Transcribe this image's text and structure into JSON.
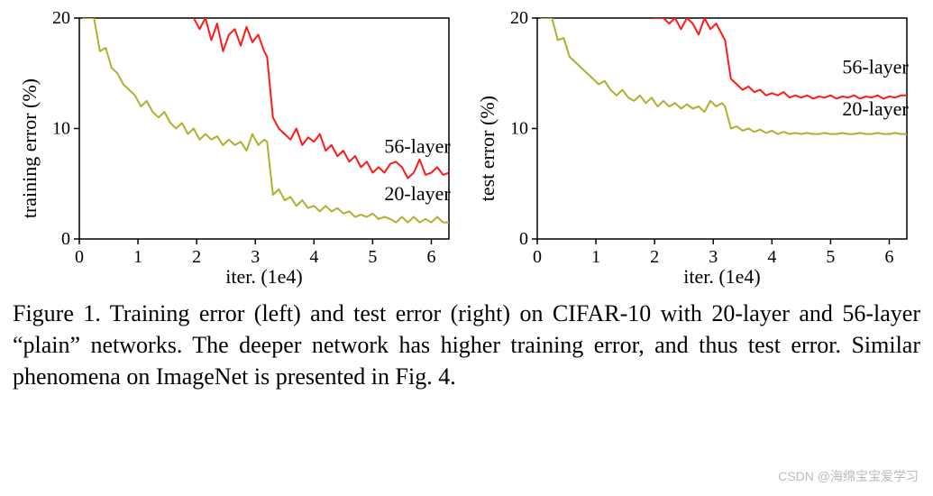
{
  "figure": {
    "caption": "Figure 1. Training error (left) and test error (right) on CIFAR-10 with 20-layer and 56-layer “plain” networks. The deeper network has higher training error, and thus test error. Similar phenomena on ImageNet is presented in Fig. 4.",
    "watermark": "CSDN @海绵宝宝爱学习"
  },
  "left_chart": {
    "type": "line",
    "ylabel": "training error (%)",
    "xlabel": "iter. (1e4)",
    "xlim": [
      0,
      6.3
    ],
    "ylim": [
      0,
      20
    ],
    "xticks": [
      0,
      1,
      2,
      3,
      4,
      5,
      6
    ],
    "yticks": [
      0,
      10,
      20
    ],
    "label_fontsize": 22,
    "tick_fontsize": 20,
    "axis_color": "#000000",
    "background_color": "#ffffff",
    "line_width": 2,
    "series": [
      {
        "name": "56-layer",
        "color": "#ff1a1a",
        "annotation": "56-layer",
        "annotation_xy": [
          5.2,
          7.8
        ],
        "x": [
          1.95,
          2.05,
          2.15,
          2.25,
          2.35,
          2.45,
          2.55,
          2.65,
          2.75,
          2.85,
          2.95,
          3.05,
          3.15,
          3.2,
          3.3,
          3.4,
          3.5,
          3.6,
          3.7,
          3.8,
          3.9,
          4.0,
          4.1,
          4.2,
          4.3,
          4.4,
          4.5,
          4.6,
          4.7,
          4.8,
          4.9,
          5.0,
          5.1,
          5.2,
          5.3,
          5.4,
          5.5,
          5.6,
          5.7,
          5.8,
          5.9,
          6.0,
          6.1,
          6.2,
          6.3
        ],
        "y": [
          20,
          19.0,
          20,
          18.0,
          19.5,
          17.0,
          18.5,
          19.0,
          17.5,
          19.2,
          17.8,
          18.5,
          17.0,
          16.5,
          11.0,
          10.0,
          9.5,
          9.0,
          10.0,
          8.5,
          9.2,
          8.8,
          9.5,
          8.0,
          8.5,
          7.5,
          8.0,
          7.0,
          7.5,
          6.5,
          7.0,
          6.0,
          6.5,
          6.0,
          6.8,
          7.0,
          6.5,
          5.5,
          6.0,
          7.2,
          5.8,
          6.0,
          6.5,
          5.8,
          6.0
        ]
      },
      {
        "name": "20-layer",
        "color": "#b0b030",
        "annotation": "20-layer",
        "annotation_xy": [
          5.2,
          3.5
        ],
        "x": [
          0.05,
          0.15,
          0.25,
          0.35,
          0.45,
          0.55,
          0.65,
          0.75,
          0.85,
          0.95,
          1.05,
          1.15,
          1.25,
          1.35,
          1.45,
          1.55,
          1.65,
          1.75,
          1.85,
          1.95,
          2.05,
          2.15,
          2.25,
          2.35,
          2.45,
          2.55,
          2.65,
          2.75,
          2.85,
          2.95,
          3.05,
          3.15,
          3.2,
          3.3,
          3.4,
          3.5,
          3.6,
          3.7,
          3.8,
          3.9,
          4.0,
          4.1,
          4.2,
          4.3,
          4.4,
          4.5,
          4.6,
          4.7,
          4.8,
          4.9,
          5.0,
          5.1,
          5.2,
          5.3,
          5.4,
          5.5,
          5.6,
          5.7,
          5.8,
          5.9,
          6.0,
          6.1,
          6.2,
          6.3
        ],
        "y": [
          20,
          20,
          20,
          17.0,
          17.3,
          15.5,
          15.0,
          14.0,
          13.5,
          13.0,
          12.0,
          12.5,
          11.5,
          11.0,
          11.5,
          10.5,
          10.0,
          10.5,
          9.5,
          10.0,
          9.0,
          9.5,
          9.0,
          9.3,
          8.5,
          9.0,
          8.5,
          8.8,
          8.0,
          9.5,
          8.5,
          9.0,
          8.8,
          4.0,
          4.5,
          3.5,
          3.8,
          3.0,
          3.5,
          2.8,
          3.0,
          2.5,
          3.0,
          2.5,
          2.8,
          2.3,
          2.5,
          2.0,
          2.2,
          2.0,
          2.3,
          1.8,
          2.0,
          1.8,
          1.5,
          2.0,
          1.5,
          2.0,
          1.5,
          1.8,
          1.5,
          2.0,
          1.5,
          1.5
        ]
      }
    ]
  },
  "right_chart": {
    "type": "line",
    "ylabel": "test error (%)",
    "xlabel": "iter. (1e4)",
    "xlim": [
      0,
      6.3
    ],
    "ylim": [
      0,
      20
    ],
    "xticks": [
      0,
      1,
      2,
      3,
      4,
      5,
      6
    ],
    "yticks": [
      0,
      10,
      20
    ],
    "label_fontsize": 22,
    "tick_fontsize": 20,
    "axis_color": "#000000",
    "background_color": "#ffffff",
    "line_width": 2,
    "series": [
      {
        "name": "56-layer",
        "color": "#ff1a1a",
        "annotation": "56-layer",
        "annotation_xy": [
          5.2,
          15.0
        ],
        "x": [
          1.95,
          2.05,
          2.15,
          2.25,
          2.35,
          2.45,
          2.55,
          2.65,
          2.75,
          2.85,
          2.95,
          3.05,
          3.15,
          3.2,
          3.3,
          3.4,
          3.5,
          3.6,
          3.7,
          3.8,
          3.9,
          4.0,
          4.1,
          4.2,
          4.3,
          4.4,
          4.5,
          4.6,
          4.7,
          4.8,
          4.9,
          5.0,
          5.1,
          5.2,
          5.3,
          5.4,
          5.5,
          5.6,
          5.7,
          5.8,
          5.9,
          6.0,
          6.1,
          6.2,
          6.3
        ],
        "y": [
          20,
          20,
          20,
          19.5,
          20,
          19.0,
          20,
          19.5,
          18.5,
          20,
          19.0,
          19.5,
          18.5,
          18.0,
          14.5,
          14.0,
          13.5,
          13.8,
          13.3,
          13.5,
          13.0,
          13.2,
          13.0,
          13.3,
          12.8,
          13.0,
          12.8,
          13.0,
          12.7,
          12.9,
          12.8,
          13.0,
          12.7,
          12.9,
          12.8,
          13.0,
          12.7,
          12.9,
          12.8,
          13.0,
          12.7,
          12.9,
          12.8,
          13.0,
          13.0
        ]
      },
      {
        "name": "20-layer",
        "color": "#b0b030",
        "annotation": "20-layer",
        "annotation_xy": [
          5.2,
          11.2
        ],
        "x": [
          0.05,
          0.15,
          0.25,
          0.35,
          0.45,
          0.55,
          0.65,
          0.75,
          0.85,
          0.95,
          1.05,
          1.15,
          1.25,
          1.35,
          1.45,
          1.55,
          1.65,
          1.75,
          1.85,
          1.95,
          2.05,
          2.15,
          2.25,
          2.35,
          2.45,
          2.55,
          2.65,
          2.75,
          2.85,
          2.95,
          3.05,
          3.15,
          3.2,
          3.3,
          3.4,
          3.5,
          3.6,
          3.7,
          3.8,
          3.9,
          4.0,
          4.1,
          4.2,
          4.3,
          4.4,
          4.5,
          4.6,
          4.7,
          4.8,
          4.9,
          5.0,
          5.1,
          5.2,
          5.3,
          5.4,
          5.5,
          5.6,
          5.7,
          5.8,
          5.9,
          6.0,
          6.1,
          6.2,
          6.3
        ],
        "y": [
          20,
          20,
          20,
          18.0,
          18.2,
          16.5,
          16.0,
          15.5,
          15.0,
          14.5,
          14.0,
          14.3,
          13.5,
          13.0,
          13.5,
          12.8,
          12.5,
          13.0,
          12.3,
          12.8,
          12.0,
          12.5,
          12.0,
          12.3,
          11.8,
          12.2,
          11.8,
          12.0,
          11.5,
          12.5,
          12.0,
          12.3,
          12.0,
          10.0,
          10.2,
          9.8,
          10.0,
          9.7,
          9.9,
          9.6,
          9.8,
          9.5,
          9.7,
          9.5,
          9.6,
          9.5,
          9.6,
          9.5,
          9.5,
          9.6,
          9.5,
          9.5,
          9.6,
          9.5,
          9.5,
          9.6,
          9.5,
          9.5,
          9.6,
          9.5,
          9.5,
          9.6,
          9.5,
          9.5
        ]
      }
    ]
  }
}
